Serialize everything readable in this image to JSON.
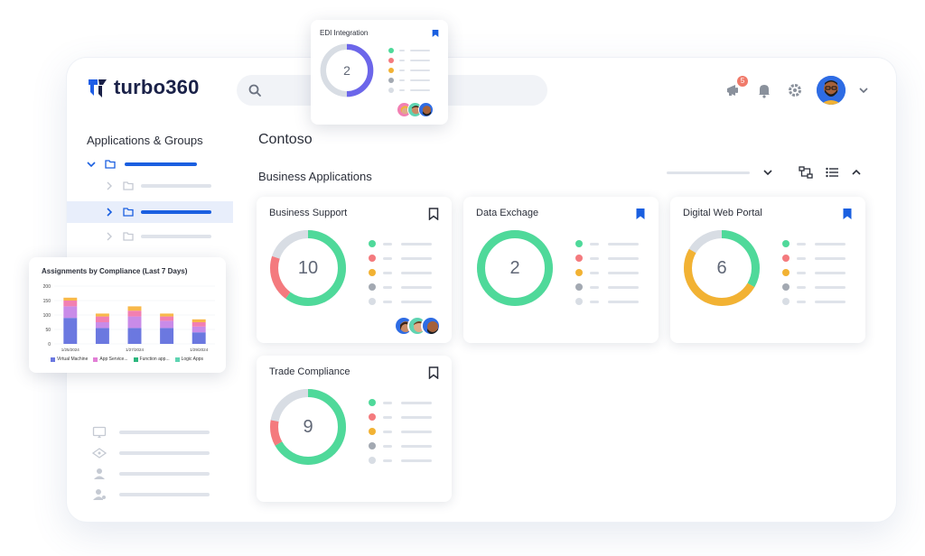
{
  "app": {
    "name": "turbo360"
  },
  "header": {
    "notification_count": "5"
  },
  "sidebar": {
    "title": "Applications & Groups"
  },
  "main": {
    "page_title": "Contoso",
    "section_title": "Business Applications",
    "cards": [
      {
        "title": "Business Support",
        "count": "10",
        "bookmarked": false,
        "segments": [
          {
            "color": "#4fd99a",
            "value": 6
          },
          {
            "color": "#f47a7e",
            "value": 2
          },
          {
            "color": "#d8dde4",
            "value": 2
          }
        ]
      },
      {
        "title": "Data Exchage",
        "count": "2",
        "bookmarked": true,
        "segments": [
          {
            "color": "#4fd99a",
            "value": 2
          }
        ]
      },
      {
        "title": "Digital Web Portal",
        "count": "6",
        "bookmarked": true,
        "segments": [
          {
            "color": "#4fd99a",
            "value": 2
          },
          {
            "color": "#f2b233",
            "value": 3
          },
          {
            "color": "#d8dde4",
            "value": 1
          }
        ]
      },
      {
        "title": "Trade Compliance",
        "count": "9",
        "bookmarked": false,
        "segments": [
          {
            "color": "#4fd99a",
            "value": 6
          },
          {
            "color": "#f47a7e",
            "value": 1
          },
          {
            "color": "#d8dde4",
            "value": 2
          }
        ]
      }
    ],
    "legend_colors": [
      "#4fd99a",
      "#f47a7e",
      "#f2b233",
      "#a3a9b2",
      "#d8dde4"
    ]
  },
  "edi_card": {
    "title": "EDI Integration",
    "count": "2",
    "segments": [
      {
        "color": "#6c66ea",
        "value": 1
      },
      {
        "color": "#d8dde4",
        "value": 1
      }
    ],
    "legend_colors": [
      "#4fd99a",
      "#f47a7e",
      "#f2b233",
      "#a3a9b2",
      "#d8dde4"
    ]
  },
  "chart_data": {
    "type": "bar",
    "title": "Assignments by Compliance (Last 7 Days)",
    "categories": [
      "1/25/2024",
      "",
      "1/27/2024",
      "",
      "1/29/2024"
    ],
    "ylim": [
      0,
      200
    ],
    "yticks": [
      "200",
      "150",
      "100",
      "50",
      "0"
    ],
    "stacked": true,
    "series": [
      {
        "name": "Virtual Machine",
        "color": "#6b78e0",
        "values": [
          90,
          55,
          55,
          55,
          40
        ]
      },
      {
        "name": "App Service...",
        "color": "#c98be8",
        "values": [
          40,
          20,
          40,
          25,
          20
        ]
      },
      {
        "name": "Function app...",
        "color": "#f27fb2",
        "values": [
          20,
          20,
          20,
          15,
          15
        ]
      },
      {
        "name": "Logic Apps",
        "color": "#f8b84a",
        "values": [
          10,
          10,
          15,
          10,
          10
        ]
      }
    ],
    "legend_swatches": [
      "#6b78e0",
      "#e27fd6",
      "#2cb67d",
      "#5fd4b2"
    ]
  }
}
